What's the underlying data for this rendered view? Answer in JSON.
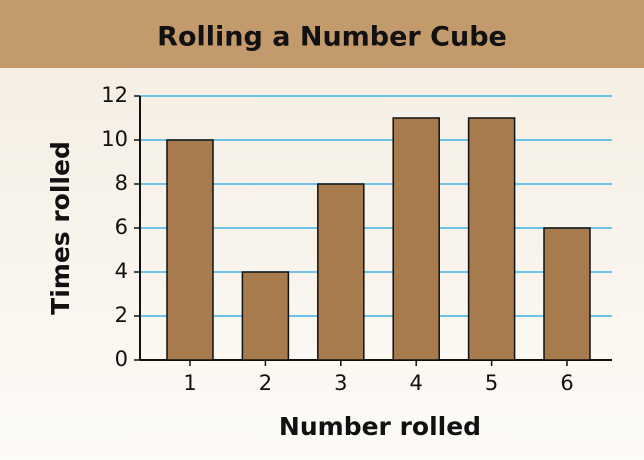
{
  "chart_data": {
    "type": "bar",
    "title": "Rolling a Number Cube",
    "x_label": "Number rolled",
    "y_label": "Times rolled",
    "categories": [
      "1",
      "2",
      "3",
      "4",
      "5",
      "6"
    ],
    "values": [
      10,
      4,
      8,
      11,
      11,
      6
    ],
    "color": "#a87b4f",
    "ylim": [
      0,
      12
    ],
    "yticks": [
      0,
      2,
      4,
      6,
      8,
      10,
      12
    ],
    "grid": true,
    "grid_color": "#3fb3e6"
  }
}
